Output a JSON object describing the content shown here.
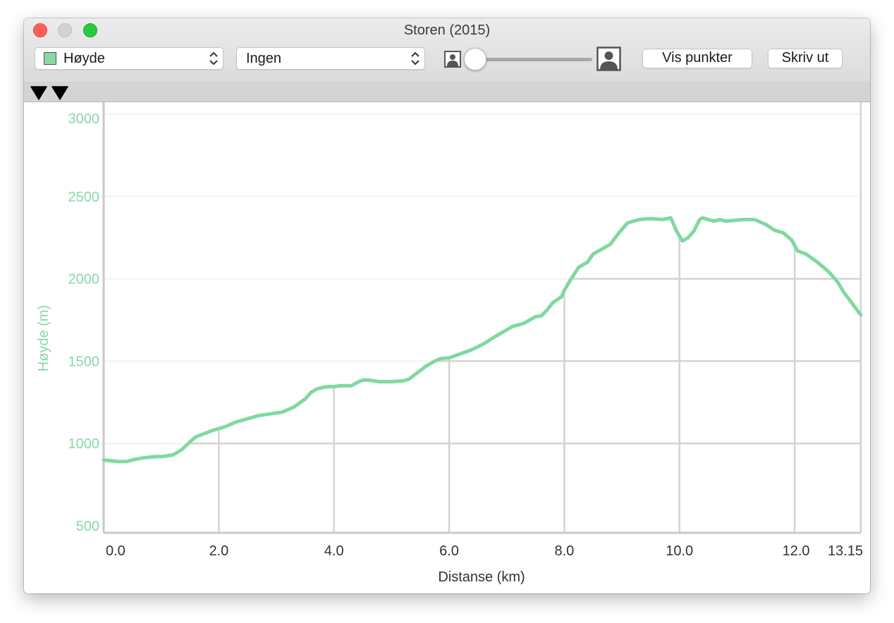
{
  "window": {
    "title": "Storen (2015)",
    "traffic_lights": {
      "close": "#fc5f57",
      "minimize": "#d2d2d2",
      "zoom": "#2ac940"
    }
  },
  "toolbar": {
    "variable_popup": {
      "value": "Høyde",
      "swatch_color": "#8ad8a6",
      "icon": "updown-chevron-icon"
    },
    "overlay_popup": {
      "value": "Ingen",
      "icon": "updown-chevron-icon"
    },
    "zoom_slider": {
      "level": 0.0,
      "min_icon": "person-small-icon",
      "max_icon": "person-large-icon"
    },
    "show_points_label": "Vis punkter",
    "print_label": "Skriv ut"
  },
  "markers": [
    {
      "icon": "marker-triangle-icon"
    },
    {
      "icon": "marker-triangle-icon"
    }
  ],
  "chart_data": {
    "type": "line",
    "xlabel": "Distanse (km)",
    "ylabel": "Høyde (m)",
    "xlim": [
      0,
      13.15
    ],
    "ylim": [
      500,
      3000
    ],
    "x_ticks": [
      "0.0",
      "2.0",
      "4.0",
      "6.0",
      "8.0",
      "10.0",
      "12.0",
      "13.15"
    ],
    "y_ticks": [
      "500",
      "1000",
      "1500",
      "2000",
      "2500",
      "3000"
    ],
    "grid": true,
    "line_color": "#7fd9a0",
    "axis_label_color": "#88d8a5",
    "series": [
      {
        "x": [
          0.0,
          0.25,
          0.4,
          0.5,
          0.65,
          0.75,
          0.9,
          1.0,
          1.2,
          1.35,
          1.5,
          1.6,
          1.75,
          1.9,
          2.0,
          2.1,
          2.3,
          2.5,
          2.7,
          2.9,
          3.1,
          3.3,
          3.5,
          3.6,
          3.7,
          3.8,
          3.9,
          4.0,
          4.1,
          4.3,
          4.4,
          4.5,
          4.6,
          4.8,
          5.0,
          5.2,
          5.3,
          5.45,
          5.6,
          5.75,
          5.85,
          6.0,
          6.2,
          6.4,
          6.6,
          6.8,
          7.0,
          7.1,
          7.3,
          7.5,
          7.6,
          7.7,
          7.8,
          7.95,
          8.0,
          8.1,
          8.25,
          8.4,
          8.5,
          8.65,
          8.8,
          8.95,
          9.1,
          9.3,
          9.5,
          9.7,
          9.85,
          9.95,
          10.05,
          10.15,
          10.25,
          10.35,
          10.4,
          10.5,
          10.6,
          10.7,
          10.8,
          10.95,
          11.1,
          11.3,
          11.5,
          11.65,
          11.8,
          11.95,
          12.05,
          12.2,
          12.4,
          12.6,
          12.75,
          12.85,
          13.0,
          13.15
        ],
        "y": [
          900,
          890,
          890,
          900,
          910,
          915,
          920,
          920,
          930,
          960,
          1010,
          1040,
          1060,
          1080,
          1090,
          1100,
          1130,
          1150,
          1170,
          1180,
          1190,
          1220,
          1270,
          1310,
          1330,
          1340,
          1345,
          1345,
          1350,
          1350,
          1370,
          1385,
          1385,
          1375,
          1375,
          1380,
          1390,
          1430,
          1470,
          1500,
          1515,
          1520,
          1545,
          1570,
          1605,
          1650,
          1690,
          1710,
          1730,
          1770,
          1775,
          1810,
          1855,
          1890,
          1930,
          1990,
          2070,
          2100,
          2150,
          2180,
          2210,
          2280,
          2340,
          2360,
          2365,
          2360,
          2370,
          2290,
          2230,
          2250,
          2290,
          2360,
          2370,
          2360,
          2350,
          2360,
          2350,
          2355,
          2360,
          2360,
          2330,
          2295,
          2280,
          2235,
          2170,
          2150,
          2100,
          2040,
          1980,
          1920,
          1850,
          1780
        ]
      }
    ]
  }
}
